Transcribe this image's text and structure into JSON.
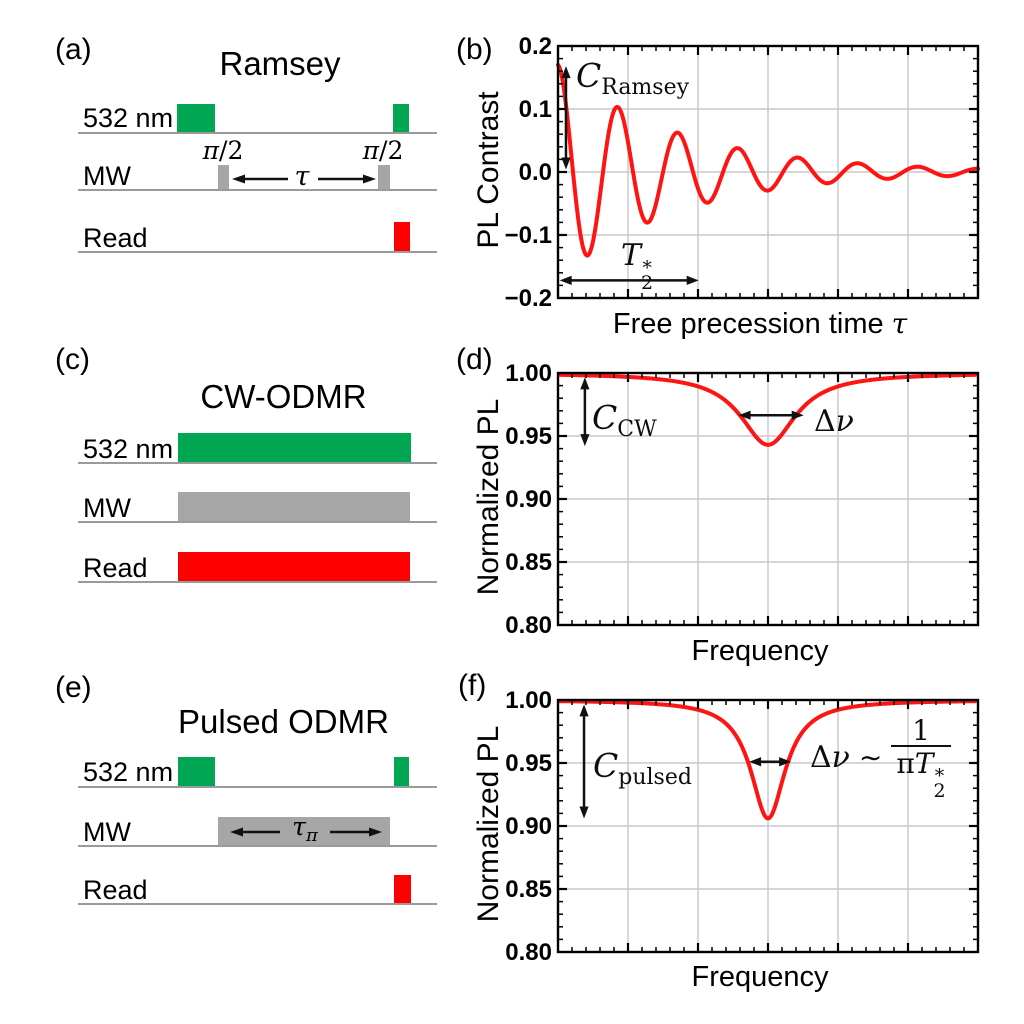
{
  "colors": {
    "laser_green": "#00a652",
    "mw_gray": "#a6a6a6",
    "read_red": "#ff0000",
    "curve_red": "#ff1414",
    "grid_gray": "#c8c8c8",
    "baseline_gray": "#9a9a9a",
    "axis_black": "#000000"
  },
  "panel_a": {
    "label": "(a)",
    "title": "Ramsey",
    "ch_532": "532 nm",
    "ch_mw": "MW",
    "ch_read": "Read"
  },
  "panel_b": {
    "label": "(b)",
    "ylabel": "PL Contrast",
    "xlabel_text": "Free precession time",
    "xlabel_tau": "τ"
  },
  "panel_c": {
    "label": "(c)",
    "title": "CW-ODMR",
    "ch_532": "532 nm",
    "ch_mw": "MW",
    "ch_read": "Read"
  },
  "panel_d": {
    "label": "(d)",
    "ylabel": "Normalized PL",
    "xlabel": "Frequency"
  },
  "panel_e": {
    "label": "(e)",
    "title": "Pulsed ODMR",
    "ch_532": "532 nm",
    "ch_mw": "MW",
    "ch_read": "Read"
  },
  "panel_f": {
    "label": "(f)",
    "ylabel": "Normalized PL",
    "xlabel": "Frequency"
  },
  "math": {
    "pi": "π",
    "slash_two": "/2",
    "tau": "τ",
    "C": "C",
    "ramsey": "Ramsey",
    "cw": "CW",
    "pulsed": "pulsed",
    "T": "T",
    "two": "2",
    "star": "*",
    "Delta": "Δ",
    "nu": "ν",
    "sim": "∼",
    "one": "1"
  },
  "chart_data": [
    {
      "panel": "b",
      "type": "line",
      "title": "",
      "xlabel": "Free precession time τ",
      "ylabel": "PL Contrast",
      "xlim": [
        0,
        1
      ],
      "ylim": [
        -0.2,
        0.2
      ],
      "yticks": [
        0.2,
        0.1,
        0,
        -0.1,
        -0.2
      ],
      "ytick_labels": [
        "0.2",
        "0.1",
        "0.0",
        "−0.1",
        "−0.2"
      ],
      "x_major_divisions": 6,
      "grid": true,
      "legend": null,
      "model": {
        "kind": "damped_cosine",
        "amplitude": 0.17,
        "period": 0.1429,
        "decay": 0.285,
        "x_start": 0,
        "x_end": 1
      },
      "annotations": [
        {
          "id": "c-ramsey",
          "type": "v-arrow",
          "x": 0.019,
          "y1": 0.004,
          "y2": 0.168,
          "label": "C_Ramsey"
        },
        {
          "id": "t2-star",
          "type": "h-arrow",
          "y": -0.172,
          "x1": 0.004,
          "x2": 0.335,
          "label": "T_2^*"
        }
      ]
    },
    {
      "panel": "d",
      "type": "line",
      "title": "",
      "xlabel": "Frequency",
      "ylabel": "Normalized PL",
      "xlim": [
        0,
        1
      ],
      "ylim": [
        0.8,
        1.0
      ],
      "yticks": [
        1.0,
        0.95,
        0.9,
        0.85,
        0.8
      ],
      "ytick_labels": [
        "1.00",
        "0.95",
        "0.90",
        "0.85",
        "0.80"
      ],
      "x_major_divisions": 6,
      "grid": true,
      "legend": null,
      "model": {
        "kind": "lorentzian_dip",
        "baseline": 1.0,
        "center": 0.5,
        "hwhm": 0.08,
        "depth": 0.057,
        "x_start": 0.004,
        "x_end": 0.993
      },
      "annotations": [
        {
          "id": "c-cw",
          "type": "v-arrow",
          "x": 0.064,
          "y1": 0.942,
          "y2": 0.9965,
          "label": "C_CW"
        },
        {
          "id": "delta-nu-cw",
          "type": "h-arrow",
          "y": 0.9665,
          "x1": 0.43,
          "x2": 0.585,
          "label": "Δν"
        }
      ]
    },
    {
      "panel": "f",
      "type": "line",
      "title": "",
      "xlabel": "Frequency",
      "ylabel": "Normalized PL",
      "xlim": [
        0,
        1
      ],
      "ylim": [
        0.8,
        1.0
      ],
      "yticks": [
        1.0,
        0.95,
        0.9,
        0.85,
        0.8
      ],
      "ytick_labels": [
        "1.00",
        "0.95",
        "0.90",
        "0.85",
        "0.80"
      ],
      "x_major_divisions": 6,
      "grid": true,
      "legend": null,
      "model": {
        "kind": "lorentzian_dip",
        "baseline": 1.0,
        "center": 0.5,
        "hwhm": 0.05,
        "depth": 0.094,
        "x_start": 0.004,
        "x_end": 0.993
      },
      "annotations": [
        {
          "id": "c-pulsed",
          "type": "v-arrow",
          "x": 0.062,
          "y1": 0.906,
          "y2": 0.9965,
          "label": "C_pulsed"
        },
        {
          "id": "delta-nu-pulsed",
          "type": "h-arrow",
          "y": 0.951,
          "x1": 0.455,
          "x2": 0.555,
          "label": "Δν ∼ 1/(πT_2^*)"
        }
      ]
    }
  ]
}
